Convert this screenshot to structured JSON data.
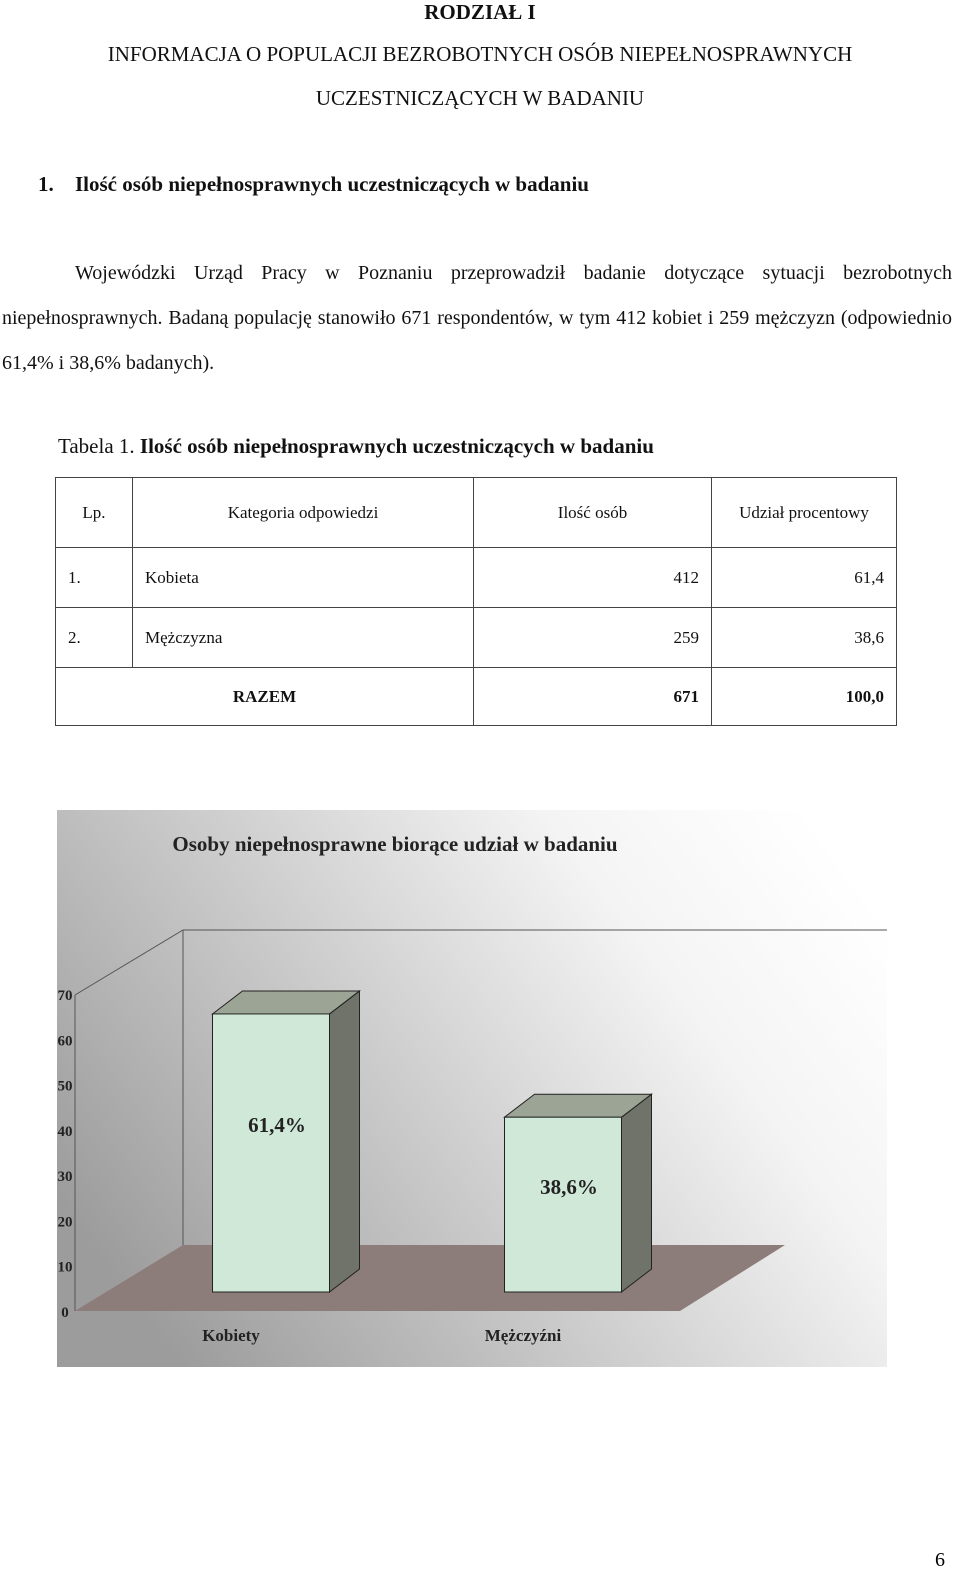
{
  "header": {
    "chapter": "RODZIAŁ I",
    "title": [
      "INFORMACJA O POPULACJI BEZROBOTNYCH OSÓB NIEPEŁNOSPRAWNYCH",
      "UCZESTNICZĄCYCH W BADANIU"
    ]
  },
  "section": {
    "number": "1.",
    "title": "Ilość osób niepełnosprawnych uczestniczących w badaniu"
  },
  "paragraph": "Wojewódzki Urząd Pracy w Poznaniu przeprowadził badanie dotyczące sytuacji bezrobotnych niepełnosprawnych. Badaną populację stanowiło 671 respondentów, w tym 412 kobiet i 259 mężczyzn (odpowiednio 61,4% i 38,6% badanych).",
  "caption": {
    "label": "Tabela 1.",
    "text": "Ilość osób niepełnosprawnych uczestniczących w badaniu"
  },
  "table": {
    "header": [
      "Lp.",
      "Kategoria odpowiedzi",
      "Ilość osób",
      "Udział procentowy"
    ],
    "rows": [
      [
        "1.",
        "Kobieta",
        "412",
        "61,4"
      ],
      [
        "2.",
        "Mężczyzna",
        "259",
        "38,6"
      ]
    ],
    "total": [
      "RAZEM",
      "671",
      "100,0"
    ]
  },
  "chart_data": {
    "type": "bar3d",
    "title": "Osoby niepełnosprawne biorące udział w badaniu",
    "categories": [
      "Kobiety",
      "Mężczyźni"
    ],
    "values": [
      61.4,
      38.6
    ],
    "value_labels": [
      "61,4%",
      "38,6%"
    ],
    "color": "#cfe8d8",
    "floor_color": "#8c7d7a",
    "ylim": [
      0,
      70
    ],
    "yticks": [
      0,
      10,
      20,
      30,
      40,
      50,
      60,
      70
    ]
  },
  "page_number": "6"
}
